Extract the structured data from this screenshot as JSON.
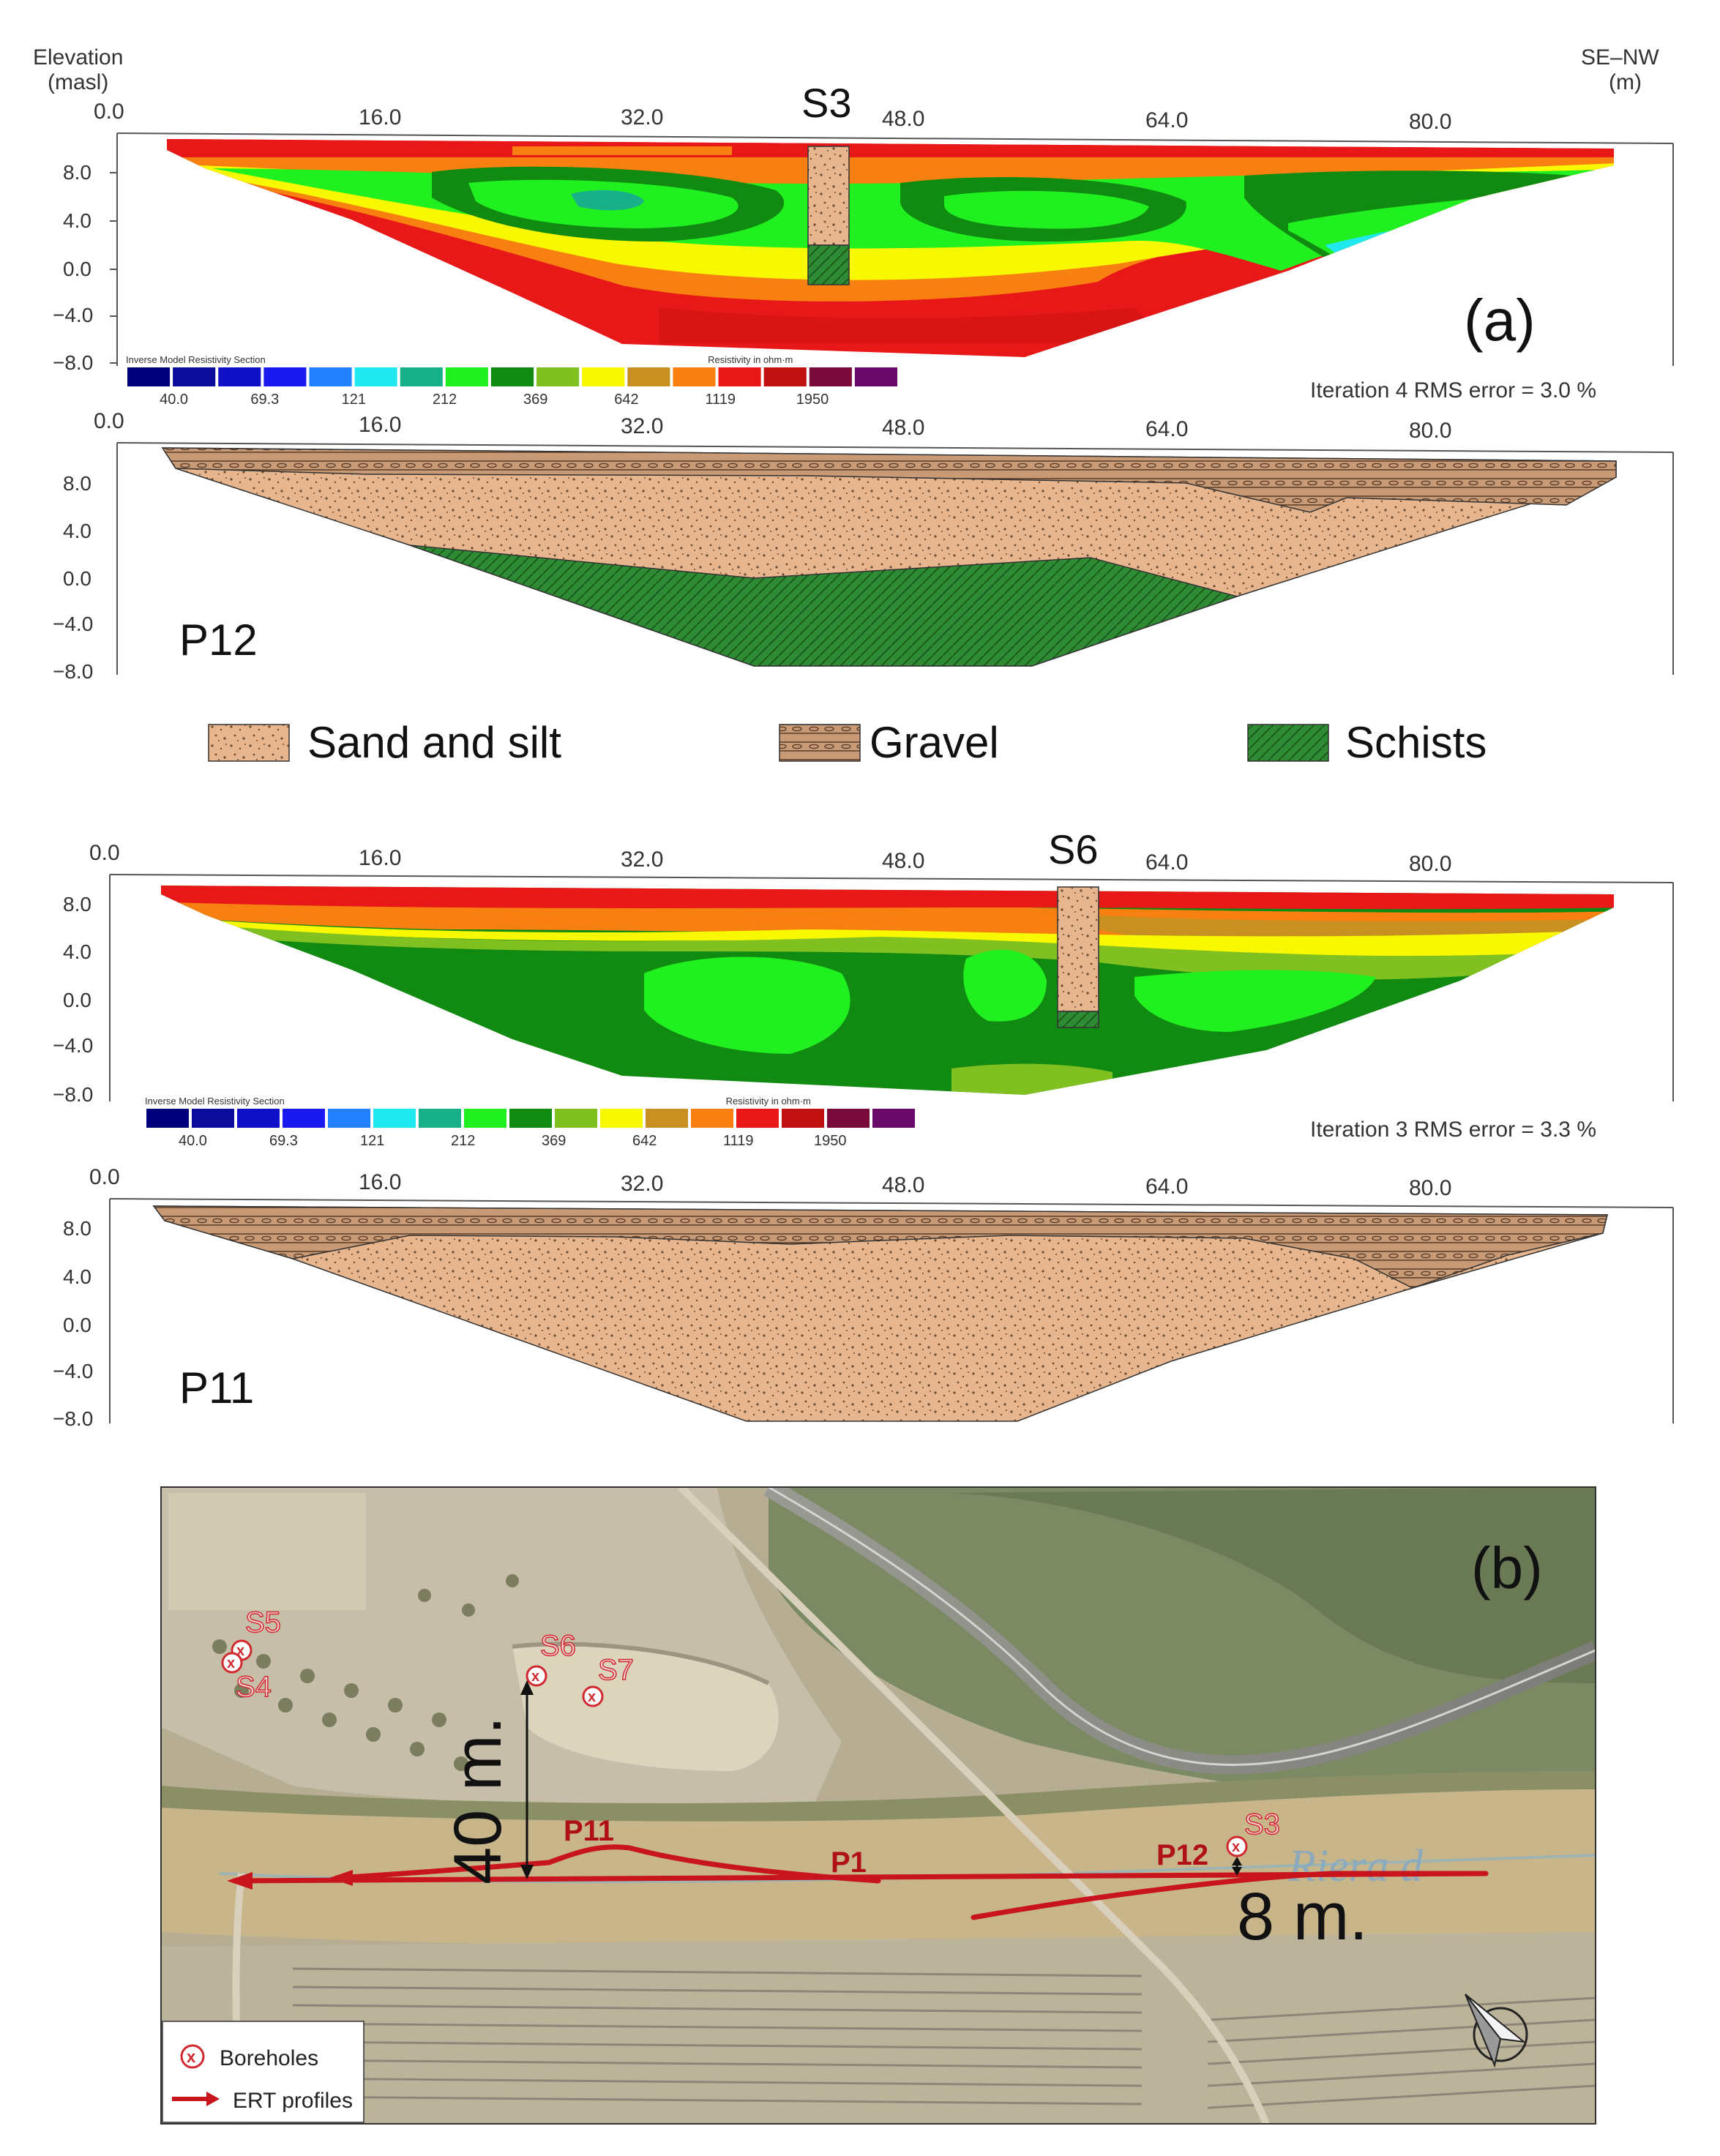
{
  "panel_a": {
    "label": "(a)",
    "y_axis_title_line1": "Elevation",
    "y_axis_title_line2": "(masl)",
    "x_axis_title_line1": "SE–NW",
    "x_axis_title_line2": "(m)",
    "x_ticks": [
      "0.0",
      "16.0",
      "32.0",
      "48.0",
      "64.0",
      "80.0"
    ],
    "y_ticks": [
      "8.0",
      "4.0",
      "0.0",
      "−4.0",
      "−8.0"
    ],
    "colorbar": {
      "title_left": "Inverse Model Resistivity Section",
      "title_right": "Resistivity in ohm·m",
      "values": [
        "40.0",
        "69.3",
        "121",
        "212",
        "369",
        "642",
        "1119",
        "1950"
      ],
      "colors": [
        "#00007a",
        "#0c0c9c",
        "#1010c8",
        "#1a1af0",
        "#2080ff",
        "#20e8f0",
        "#18b088",
        "#20f020",
        "#118a11",
        "#80c020",
        "#f8f800",
        "#c89020",
        "#f88010",
        "#e81818",
        "#c01010",
        "#7a0a3a",
        "#6a0a6a"
      ]
    },
    "section1": {
      "borehole": "S3",
      "iteration_text": "Iteration 4 RMS error = 3.0 %",
      "profile": "P12"
    },
    "section2": {
      "borehole": "S6",
      "iteration_text": "Iteration 3 RMS error = 3.3 %",
      "profile": "P11"
    },
    "legend": [
      {
        "label": "Sand and silt",
        "pattern": "sand"
      },
      {
        "label": "Gravel",
        "pattern": "gravel"
      },
      {
        "label": "Schists",
        "pattern": "schist"
      }
    ]
  },
  "panel_b": {
    "label": "(b)",
    "boreholes": [
      "S5",
      "S4",
      "S6",
      "S7",
      "S3"
    ],
    "profiles": [
      "P11",
      "P1",
      "P12"
    ],
    "distance_1": "40 m.",
    "distance_2": "8 m.",
    "legend": {
      "boreholes": "Boreholes",
      "profiles": "ERT profiles"
    },
    "colors": {
      "profile_red": "#c8141c",
      "borehole_red": "#d02a30"
    }
  }
}
